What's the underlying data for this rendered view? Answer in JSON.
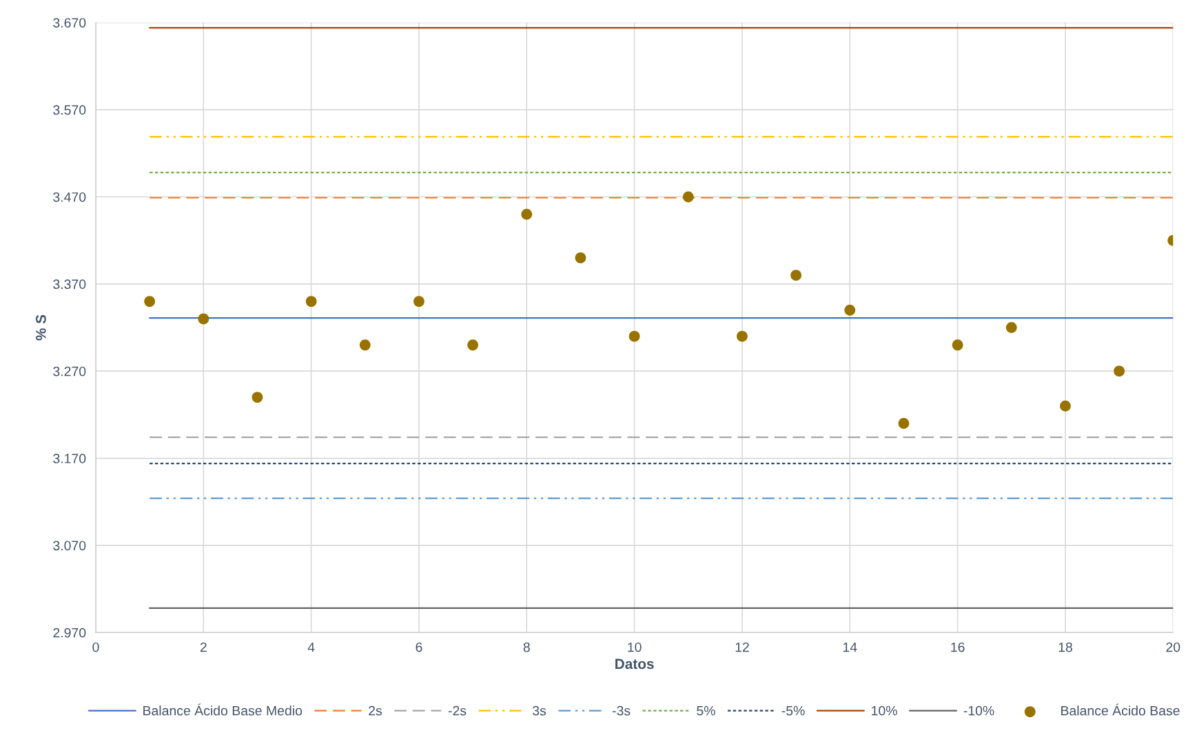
{
  "chart_data": {
    "type": "scatter",
    "xlabel": "Datos",
    "ylabel": "% S",
    "xlim": [
      0,
      20
    ],
    "xticks": [
      0,
      2,
      4,
      6,
      8,
      10,
      12,
      14,
      16,
      18,
      20
    ],
    "ylim": [
      2.97,
      3.67
    ],
    "yticks": [
      {
        "value": 2.97,
        "label": "2.970"
      },
      {
        "value": 3.07,
        "label": "3.070"
      },
      {
        "value": 3.17,
        "label": "3.170"
      },
      {
        "value": 3.27,
        "label": "3.270"
      },
      {
        "value": 3.37,
        "label": "3.370"
      },
      {
        "value": 3.47,
        "label": "3.470"
      },
      {
        "value": 3.57,
        "label": "3.570"
      },
      {
        "value": 3.67,
        "label": "3.670"
      }
    ],
    "grid": true,
    "legend": "bottom",
    "series": [
      {
        "name": "Balance Ácido Base Medio",
        "type": "line",
        "line_style": "solid",
        "color": "#4472c4",
        "x": [
          1,
          20
        ],
        "values": [
          3.331,
          3.331
        ]
      },
      {
        "name": "2s",
        "type": "line",
        "line_style": "dashed",
        "color": "#ed7d31",
        "x": [
          1,
          20
        ],
        "values": [
          3.469,
          3.469
        ]
      },
      {
        "name": "-2s",
        "type": "line",
        "line_style": "dashed",
        "color": "#a5a5a5",
        "x": [
          1,
          20
        ],
        "values": [
          3.194,
          3.194
        ]
      },
      {
        "name": "3s",
        "type": "line",
        "line_style": "dashdotdot",
        "color": "#ffc000",
        "x": [
          1,
          20
        ],
        "values": [
          3.539,
          3.539
        ]
      },
      {
        "name": "-3s",
        "type": "line",
        "line_style": "dashdotdot",
        "color": "#5b9bd5",
        "x": [
          1,
          20
        ],
        "values": [
          3.124,
          3.124
        ]
      },
      {
        "name": "5%",
        "type": "line",
        "line_style": "dotted",
        "color": "#70ad47",
        "x": [
          1,
          20
        ],
        "values": [
          3.498,
          3.498
        ]
      },
      {
        "name": "-5%",
        "type": "line",
        "line_style": "dotted",
        "color": "#264478",
        "x": [
          1,
          20
        ],
        "values": [
          3.164,
          3.164
        ]
      },
      {
        "name": "10%",
        "type": "line",
        "line_style": "solid",
        "color": "#9e480e",
        "x": [
          1,
          20
        ],
        "values": [
          3.664,
          3.664
        ]
      },
      {
        "name": "-10%",
        "type": "line",
        "line_style": "solid",
        "color": "#636363",
        "x": [
          1,
          20
        ],
        "values": [
          2.998,
          2.998
        ]
      },
      {
        "name": "Balance Ácido Base",
        "marker": "circle",
        "color": "#997300",
        "x": [
          1,
          2,
          3,
          4,
          5,
          6,
          7,
          8,
          9,
          10,
          11,
          12,
          13,
          14,
          15,
          16,
          17,
          18,
          19,
          20
        ],
        "values": [
          3.35,
          3.33,
          3.24,
          3.35,
          3.3,
          3.35,
          3.3,
          3.45,
          3.4,
          3.31,
          3.47,
          3.31,
          3.38,
          3.34,
          3.21,
          3.3,
          3.32,
          3.23,
          3.27,
          3.42
        ]
      }
    ]
  }
}
